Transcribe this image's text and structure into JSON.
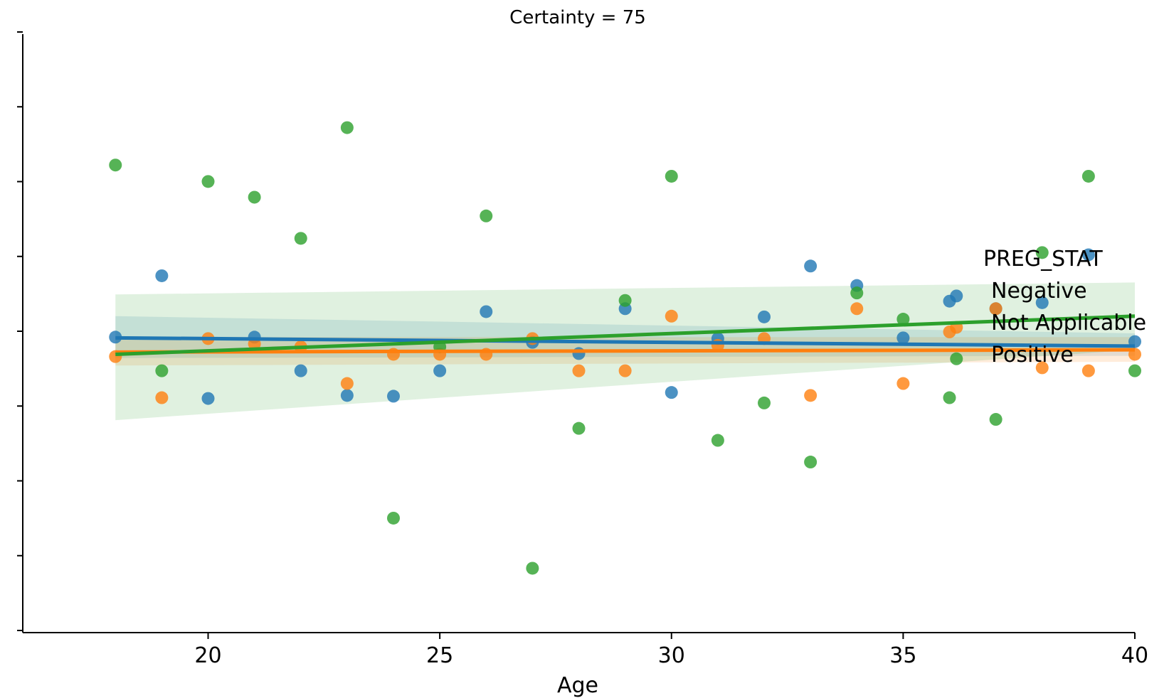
{
  "chart_data": {
    "type": "scatter",
    "title": "Certainty = 75",
    "xlabel": "Age",
    "ylabel": "",
    "xlim": [
      16,
      40
    ],
    "ylim": [
      0,
      8
    ],
    "xticks": [
      20,
      25,
      30,
      35,
      40
    ],
    "ytick_count": 8,
    "grid": false,
    "legend": {
      "title": "PREG_STAT",
      "placement": "right"
    },
    "series": [
      {
        "name": "Negative",
        "color": "#1f77b4",
        "points": [
          [
            18,
            3.95
          ],
          [
            19,
            4.77
          ],
          [
            20,
            3.13
          ],
          [
            21,
            3.95
          ],
          [
            22,
            3.5
          ],
          [
            23,
            3.17
          ],
          [
            24,
            3.16
          ],
          [
            25,
            3.5
          ],
          [
            26,
            4.29
          ],
          [
            27,
            3.88
          ],
          [
            28,
            3.73
          ],
          [
            29,
            4.33
          ],
          [
            30,
            3.21
          ],
          [
            31,
            3.93
          ],
          [
            32,
            4.22
          ],
          [
            33,
            4.9
          ],
          [
            34,
            4.64
          ],
          [
            35,
            3.94
          ],
          [
            36,
            4.43
          ],
          [
            36.15,
            4.5
          ],
          [
            37,
            4.33
          ],
          [
            38,
            4.41
          ],
          [
            39,
            5.05
          ],
          [
            40,
            3.89
          ]
        ],
        "fit": {
          "x": [
            18,
            40
          ],
          "y": [
            3.94,
            3.83
          ]
        },
        "ci_upper": [
          4.23,
          4.0
        ],
        "ci_lower": [
          3.67,
          3.7
        ]
      },
      {
        "name": "Not Applicable",
        "color": "#ff7f0e",
        "points": [
          [
            18,
            3.69
          ],
          [
            19,
            3.14
          ],
          [
            20,
            3.93
          ],
          [
            21,
            3.86
          ],
          [
            22,
            3.82
          ],
          [
            23,
            3.33
          ],
          [
            24,
            3.72
          ],
          [
            25,
            3.72
          ],
          [
            26,
            3.72
          ],
          [
            27,
            3.93
          ],
          [
            28,
            3.5
          ],
          [
            29,
            3.5
          ],
          [
            30,
            4.23
          ],
          [
            31,
            3.84
          ],
          [
            32,
            3.93
          ],
          [
            33,
            3.17
          ],
          [
            34,
            4.33
          ],
          [
            35,
            3.33
          ],
          [
            36,
            4.02
          ],
          [
            36.15,
            4.08
          ],
          [
            37,
            4.33
          ],
          [
            38,
            3.54
          ],
          [
            39,
            3.5
          ],
          [
            40,
            3.72
          ]
        ],
        "fit": {
          "x": [
            18,
            40
          ],
          "y": [
            3.75,
            3.78
          ]
        },
        "ci_upper": [
          3.95,
          3.95
        ],
        "ci_lower": [
          3.57,
          3.62
        ]
      },
      {
        "name": "Positive",
        "color": "#2ca02c",
        "points": [
          [
            18,
            6.25
          ],
          [
            19,
            3.5
          ],
          [
            20,
            6.03
          ],
          [
            21,
            5.82
          ],
          [
            22,
            5.27
          ],
          [
            23,
            6.75
          ],
          [
            24,
            1.53
          ],
          [
            25,
            3.82
          ],
          [
            26,
            5.57
          ],
          [
            27,
            0.86
          ],
          [
            28,
            2.73
          ],
          [
            29,
            4.44
          ],
          [
            30,
            6.1
          ],
          [
            31,
            2.57
          ],
          [
            32,
            3.07
          ],
          [
            33,
            2.28
          ],
          [
            34,
            4.54
          ],
          [
            35,
            4.19
          ],
          [
            36,
            3.14
          ],
          [
            36.15,
            3.66
          ],
          [
            37,
            2.85
          ],
          [
            38,
            5.08
          ],
          [
            39,
            6.1
          ],
          [
            40,
            3.5
          ]
        ],
        "fit": {
          "x": [
            18,
            40
          ],
          "y": [
            3.72,
            4.23
          ]
        },
        "ci_upper": [
          4.52,
          4.68
        ],
        "ci_lower": [
          2.84,
          3.78
        ]
      }
    ]
  }
}
